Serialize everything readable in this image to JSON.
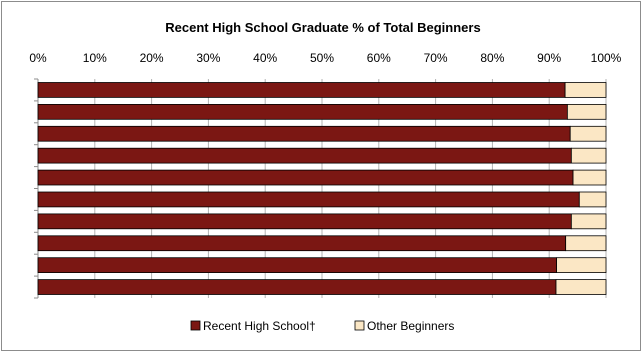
{
  "chart_data": {
    "type": "bar",
    "orientation": "horizontal",
    "stacked": "percent",
    "title": "Recent High School Graduate % of Total Beginners",
    "xlabel": "",
    "ylabel": "",
    "xlim": [
      0,
      100
    ],
    "x_ticks": [
      "0%",
      "10%",
      "20%",
      "30%",
      "40%",
      "50%",
      "60%",
      "70%",
      "80%",
      "90%",
      "100%"
    ],
    "categories": [
      "",
      "",
      "",
      "",
      "",
      "",
      "",
      "",
      "",
      ""
    ],
    "series": [
      {
        "name": "Recent High School†",
        "color": "#7b1713",
        "values": [
          92.8,
          93.2,
          93.7,
          93.9,
          94.2,
          95.3,
          93.9,
          92.9,
          91.3,
          91.2
        ]
      },
      {
        "name": "Other Beginners",
        "color": "#fbe7c5",
        "values": [
          7.2,
          6.8,
          6.3,
          6.1,
          5.8,
          4.7,
          6.1,
          7.1,
          8.7,
          8.8
        ]
      }
    ],
    "grid": true,
    "legend": "bottom"
  }
}
